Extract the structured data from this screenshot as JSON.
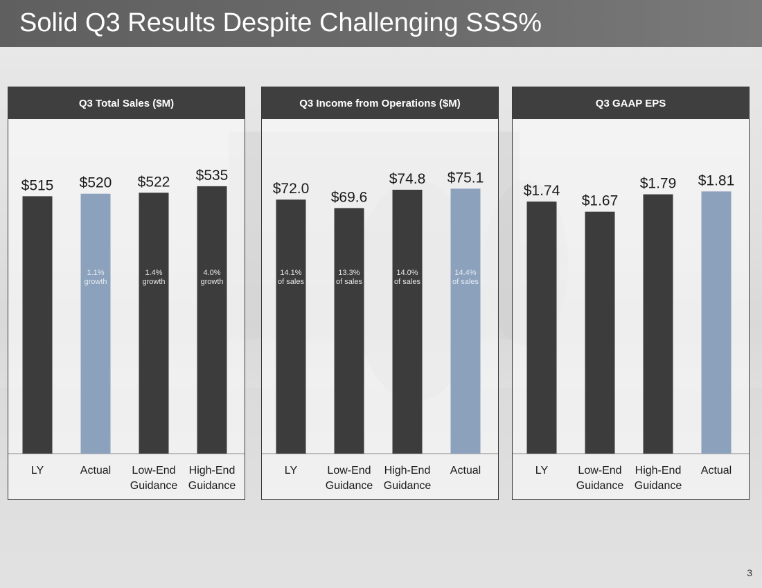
{
  "slide": {
    "title": "Solid Q3 Results Despite Challenging SSS%",
    "page_number": "3"
  },
  "colors": {
    "dark_bar": "#3c3c3c",
    "highlight_bar": "#8ca1bc",
    "header_bg": "#3f3f3f"
  },
  "chart_data": [
    {
      "type": "bar",
      "title": "Q3 Total Sales ($M)",
      "categories": [
        "LY",
        "Actual",
        "Low-End Guidance",
        "High-End Guidance"
      ],
      "category_lines": [
        [
          "LY"
        ],
        [
          "Actual"
        ],
        [
          "Low-End",
          "Guidance"
        ],
        [
          "High-End",
          "Guidance"
        ]
      ],
      "values": [
        515,
        520,
        522,
        535
      ],
      "value_labels": [
        "$515",
        "$520",
        "$522",
        "$535"
      ],
      "inner_labels": [
        [],
        [
          "1.1%",
          "growth"
        ],
        [
          "1.4%",
          "growth"
        ],
        [
          "4.0%",
          "growth"
        ]
      ],
      "highlight": [
        false,
        true,
        false,
        false
      ],
      "ylim": [
        0,
        600
      ],
      "xlabel": "",
      "ylabel": ""
    },
    {
      "type": "bar",
      "title": "Q3 Income from Operations ($M)",
      "categories": [
        "LY",
        "Low-End Guidance",
        "High-End Guidance",
        "Actual"
      ],
      "category_lines": [
        [
          "LY"
        ],
        [
          "Low-End",
          "Guidance"
        ],
        [
          "High-End",
          "Guidance"
        ],
        [
          "Actual"
        ]
      ],
      "values": [
        72.0,
        69.6,
        74.8,
        75.1
      ],
      "value_labels": [
        "$72.0",
        "$69.6",
        "$74.8",
        "$75.1"
      ],
      "inner_labels": [
        [
          "14.1%",
          "of sales"
        ],
        [
          "13.3%",
          "of sales"
        ],
        [
          "14.0%",
          "of sales"
        ],
        [
          "14.4%",
          "of sales"
        ]
      ],
      "highlight": [
        false,
        false,
        false,
        true
      ],
      "ylim": [
        0,
        85
      ],
      "xlabel": "",
      "ylabel": ""
    },
    {
      "type": "bar",
      "title": "Q3 GAAP EPS",
      "categories": [
        "LY",
        "Low-End Guidance",
        "High-End Guidance",
        "Actual"
      ],
      "category_lines": [
        [
          "LY"
        ],
        [
          "Low-End",
          "Guidance"
        ],
        [
          "High-End",
          "Guidance"
        ],
        [
          "Actual"
        ]
      ],
      "values": [
        1.74,
        1.67,
        1.79,
        1.81
      ],
      "value_labels": [
        "$1.74",
        "$1.67",
        "$1.79",
        "$1.81"
      ],
      "inner_labels": [
        [],
        [],
        [],
        []
      ],
      "highlight": [
        false,
        false,
        false,
        true
      ],
      "ylim": [
        0,
        2.07
      ],
      "xlabel": "",
      "ylabel": ""
    }
  ]
}
